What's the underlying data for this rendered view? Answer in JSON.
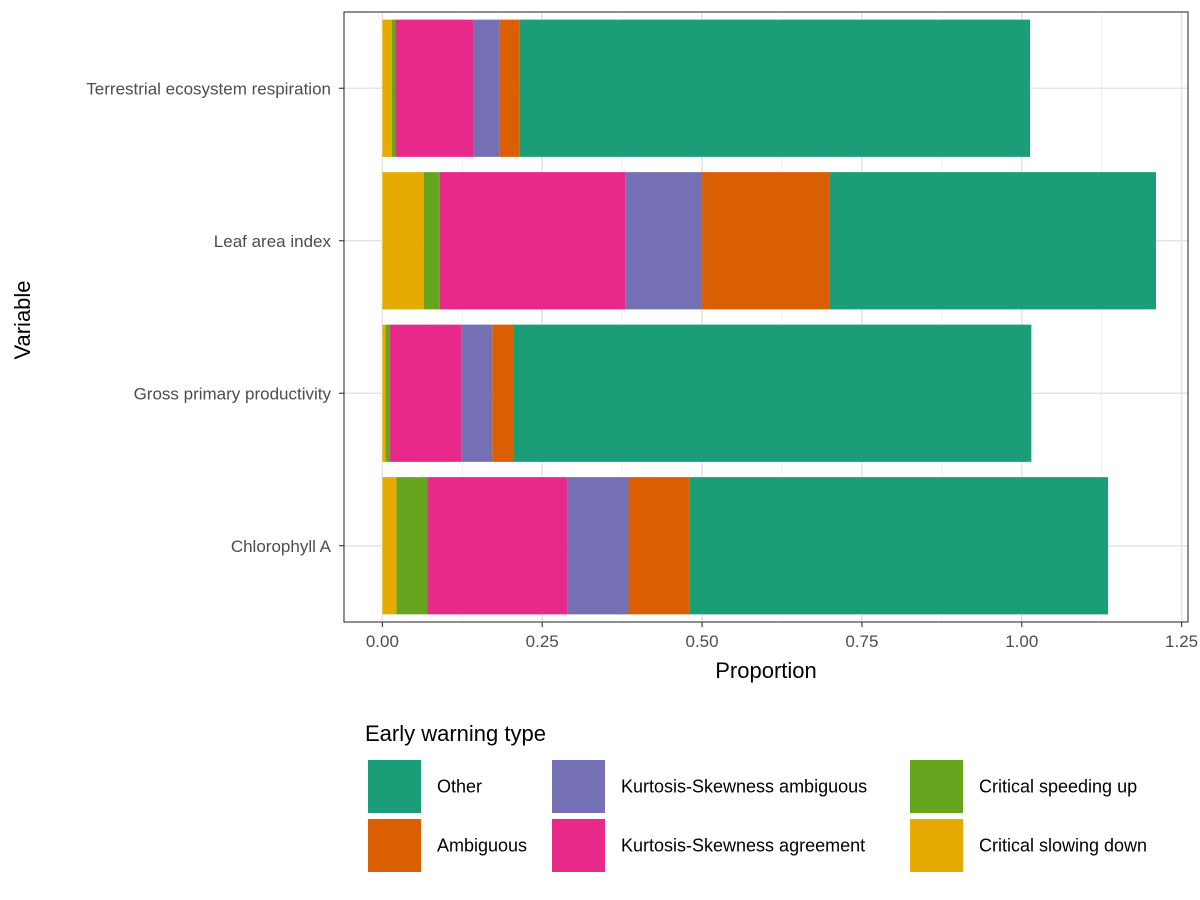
{
  "chart_data": {
    "type": "bar",
    "orientation": "horizontal",
    "stacked": true,
    "xlabel": "Proportion",
    "ylabel": "Variable",
    "xlim": [
      -0.06,
      1.26
    ],
    "x_ticks": [
      "0.00",
      "0.25",
      "0.50",
      "0.75",
      "1.00",
      "1.25"
    ],
    "x_tick_values": [
      0,
      0.25,
      0.5,
      0.75,
      1.0,
      1.25
    ],
    "grid": true,
    "categories": [
      "Terrestrial ecosystem respiration",
      "Leaf area index",
      "Gross primary productivity",
      "Chlorophyll A"
    ],
    "series": [
      {
        "name": "Critical slowing down",
        "color": "#E6AB02",
        "values": [
          0.015,
          0.065,
          0.005,
          0.022
        ]
      },
      {
        "name": "Critical speeding up",
        "color": "#66A61E",
        "values": [
          0.005,
          0.025,
          0.007,
          0.048
        ]
      },
      {
        "name": "Kurtosis-Skewness agreement",
        "color": "#E7298A",
        "values": [
          0.123,
          0.29,
          0.112,
          0.22
        ]
      },
      {
        "name": "Kurtosis-Skewness ambiguous",
        "color": "#7570B3",
        "values": [
          0.04,
          0.12,
          0.048,
          0.095
        ]
      },
      {
        "name": "Ambiguous",
        "color": "#D95F02",
        "values": [
          0.032,
          0.2,
          0.033,
          0.095
        ]
      },
      {
        "name": "Other",
        "color": "#1B9E77",
        "values": [
          0.798,
          0.51,
          0.81,
          0.655
        ]
      }
    ],
    "legend": {
      "title": "Early warning type",
      "position": "bottom",
      "items": [
        {
          "label": "Other",
          "color": "#1B9E77"
        },
        {
          "label": "Ambiguous",
          "color": "#D95F02"
        },
        {
          "label": "Kurtosis-Skewness ambiguous",
          "color": "#7570B3"
        },
        {
          "label": "Kurtosis-Skewness agreement",
          "color": "#E7298A"
        },
        {
          "label": "Critical speeding up",
          "color": "#66A61E"
        },
        {
          "label": "Critical slowing down",
          "color": "#E6AB02"
        }
      ]
    }
  }
}
